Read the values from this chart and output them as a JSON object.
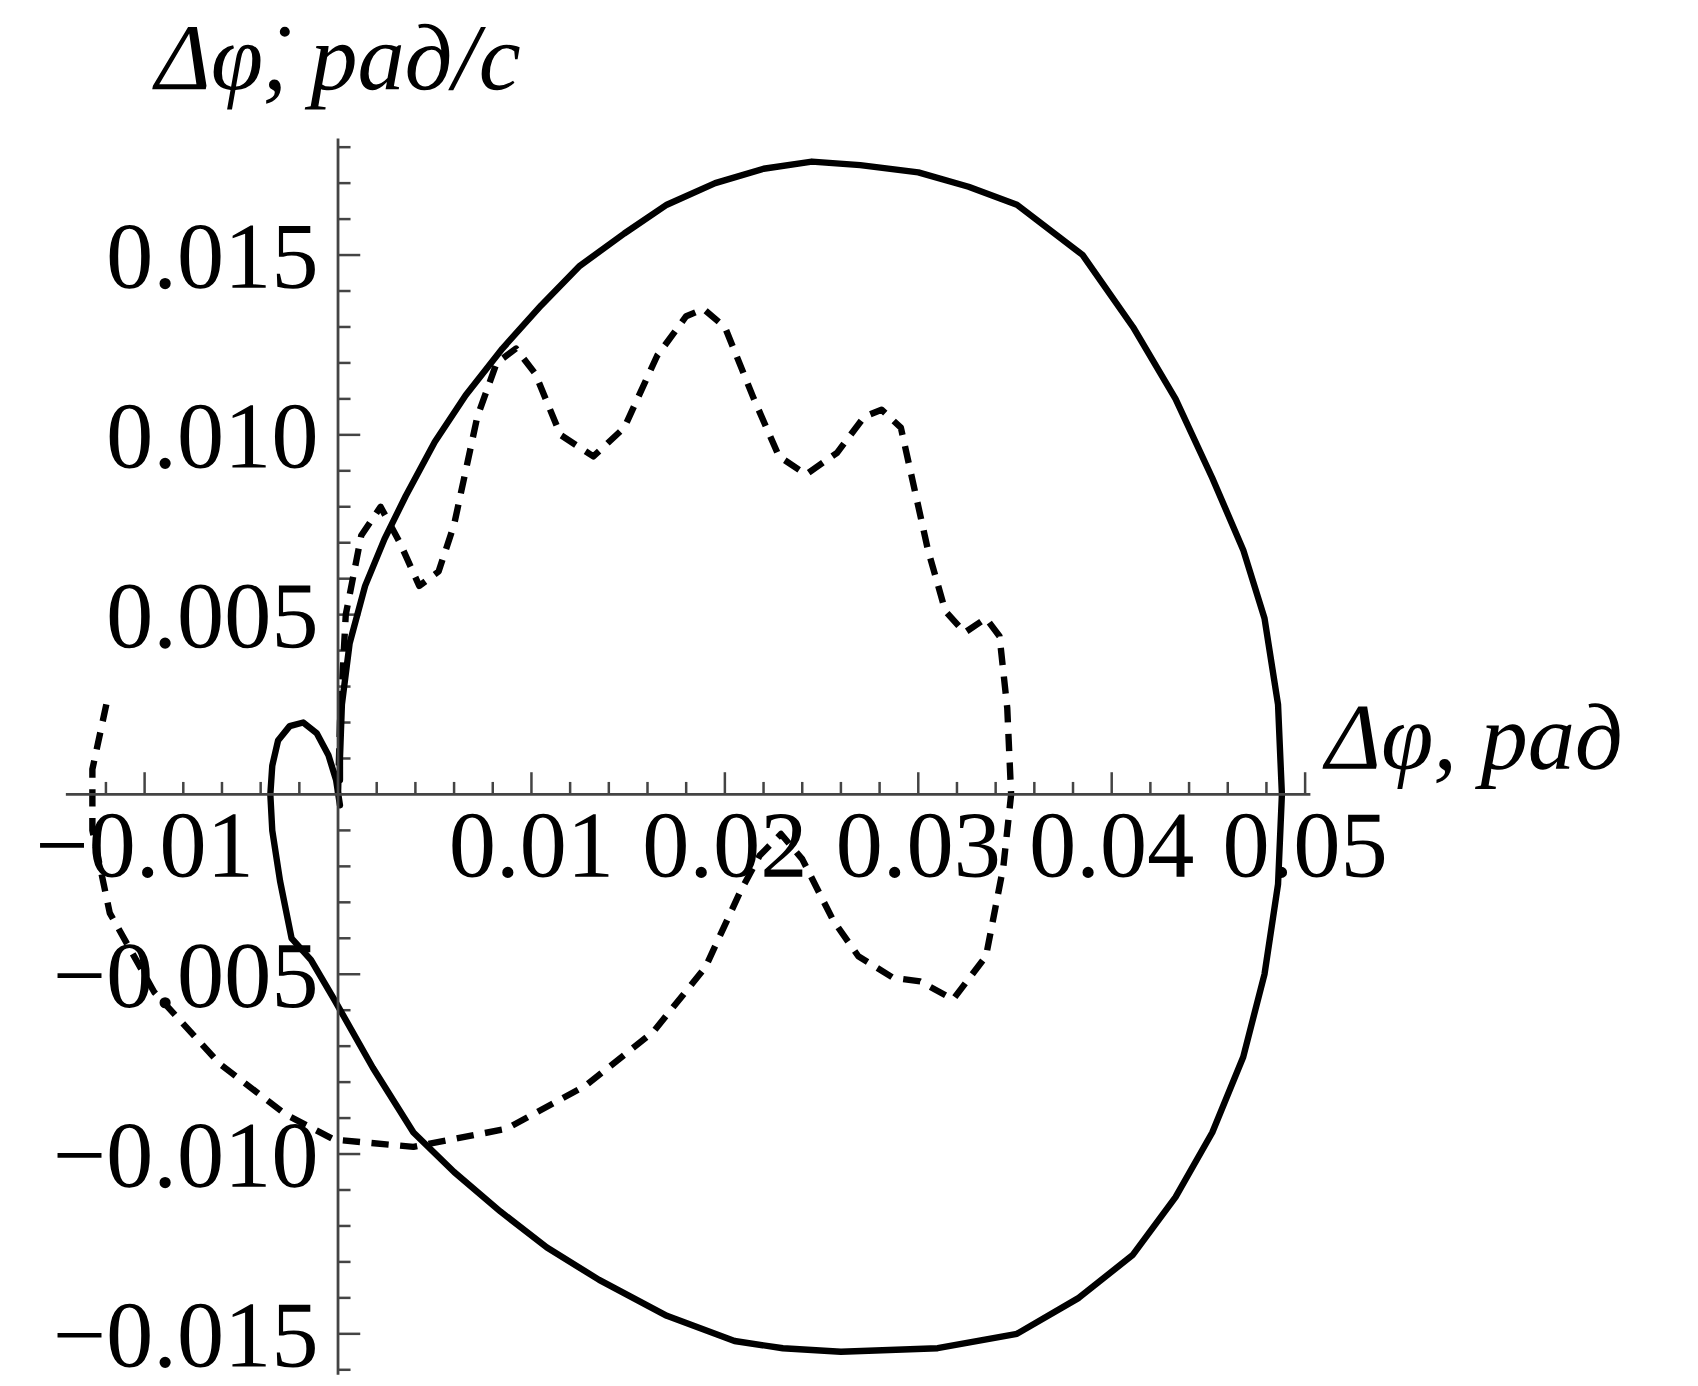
{
  "chart_data": {
    "type": "line",
    "xlabel": "Δφ, рад",
    "ylabel": "Δφ̇, рад/с",
    "xlim": [
      -0.014,
      0.0502
    ],
    "ylim": [
      -0.0161,
      0.0182
    ],
    "xticks": [
      {
        "value": -0.012,
        "label": null
      },
      {
        "value": -0.01,
        "label": "−0.01"
      },
      {
        "value": -0.008,
        "label": null
      },
      {
        "value": -0.006,
        "label": null
      },
      {
        "value": -0.004,
        "label": null
      },
      {
        "value": -0.002,
        "label": null
      },
      {
        "value": 0.002,
        "label": null
      },
      {
        "value": 0.004,
        "label": null
      },
      {
        "value": 0.006,
        "label": null
      },
      {
        "value": 0.008,
        "label": null
      },
      0.01,
      {
        "value": 0.012,
        "label": null
      },
      {
        "value": 0.014,
        "label": null
      },
      {
        "value": 0.016,
        "label": null
      },
      {
        "value": 0.018,
        "label": null
      },
      0.02,
      {
        "value": 0.022,
        "label": null
      },
      {
        "value": 0.024,
        "label": null
      },
      {
        "value": 0.026,
        "label": null
      },
      {
        "value": 0.028,
        "label": null
      },
      0.03,
      {
        "value": 0.032,
        "label": null
      },
      {
        "value": 0.034,
        "label": null
      },
      {
        "value": 0.036,
        "label": null
      },
      {
        "value": 0.038,
        "label": null
      },
      0.04,
      {
        "value": 0.042,
        "label": null
      },
      {
        "value": 0.044,
        "label": null
      },
      {
        "value": 0.046,
        "label": null
      },
      {
        "value": 0.048,
        "label": null
      },
      0.05
    ],
    "yticks": [
      {
        "value": -0.016,
        "label": null
      },
      {
        "value": -0.015,
        "label": "−0.015"
      },
      {
        "value": -0.014,
        "label": null
      },
      {
        "value": -0.013,
        "label": null
      },
      {
        "value": -0.012,
        "label": null
      },
      {
        "value": -0.011,
        "label": null
      },
      {
        "value": -0.01,
        "label": "−0.010"
      },
      {
        "value": -0.009,
        "label": null
      },
      {
        "value": -0.008,
        "label": null
      },
      {
        "value": -0.007,
        "label": null
      },
      {
        "value": -0.006,
        "label": null
      },
      {
        "value": -0.005,
        "label": "−0.005"
      },
      {
        "value": -0.004,
        "label": null
      },
      {
        "value": -0.003,
        "label": null
      },
      {
        "value": -0.002,
        "label": null
      },
      {
        "value": -0.001,
        "label": null
      },
      {
        "value": 0.001,
        "label": null
      },
      {
        "value": 0.002,
        "label": null
      },
      {
        "value": 0.003,
        "label": null
      },
      {
        "value": 0.004,
        "label": null
      },
      0.005,
      {
        "value": 0.006,
        "label": null
      },
      {
        "value": 0.007,
        "label": null
      },
      {
        "value": 0.008,
        "label": null
      },
      {
        "value": 0.009,
        "label": null
      },
      {
        "value": 0.01,
        "label": "0.010"
      },
      {
        "value": 0.011,
        "label": null
      },
      {
        "value": 0.012,
        "label": null
      },
      {
        "value": 0.013,
        "label": null
      },
      {
        "value": 0.014,
        "label": null
      },
      0.015,
      {
        "value": 0.016,
        "label": null
      },
      {
        "value": 0.017,
        "label": null
      },
      {
        "value": 0.018,
        "label": null
      }
    ],
    "series": [
      {
        "color": "#000000",
        "line_style": "solid",
        "x": [
          0.0001,
          0.0001,
          0.0002,
          0.0006,
          0.0014,
          0.0024,
          0.0035,
          0.005,
          0.0066,
          0.0085,
          0.0105,
          0.0125,
          0.0148,
          0.017,
          0.0195,
          0.022,
          0.0245,
          0.027,
          0.03,
          0.0326,
          0.0351,
          0.0385,
          0.0411,
          0.0433,
          0.0452,
          0.0468,
          0.0479,
          0.0486,
          0.0488,
          0.0486,
          0.0479,
          0.0468,
          0.0452,
          0.0433,
          0.0411,
          0.0383,
          0.0351,
          0.031,
          0.026,
          0.023,
          0.0205,
          0.017,
          0.0135,
          0.0108,
          0.0084,
          0.006,
          0.0039,
          0.0018,
          -0.0002,
          -0.0014,
          -0.0024,
          -0.003,
          -0.0034,
          -0.0035,
          -0.0034,
          -0.0031,
          -0.0025,
          -0.0018,
          -0.0011,
          -0.0005,
          -0.0001,
          0.0001
        ],
        "values": [
          0.0004,
          0.001,
          0.0025,
          0.0042,
          0.0058,
          0.0071,
          0.0083,
          0.0098,
          0.0111,
          0.0124,
          0.0136,
          0.0147,
          0.0156,
          0.0164,
          0.017,
          0.0174,
          0.0176,
          0.0175,
          0.0173,
          0.0169,
          0.0164,
          0.015,
          0.013,
          0.011,
          0.0088,
          0.0068,
          0.0049,
          0.0025,
          0.0,
          -0.0025,
          -0.005,
          -0.0073,
          -0.0094,
          -0.0112,
          -0.0128,
          -0.014,
          -0.015,
          -0.0154,
          -0.0155,
          -0.0154,
          -0.0152,
          -0.0145,
          -0.0135,
          -0.0126,
          -0.0116,
          -0.0105,
          -0.0094,
          -0.0076,
          -0.0057,
          -0.0046,
          -0.004,
          -0.0024,
          -0.001,
          0.0,
          0.0008,
          0.0015,
          0.0019,
          0.002,
          0.0017,
          0.0011,
          0.0004,
          -0.0003
        ]
      },
      {
        "color": "#000000",
        "line_style": "dashed",
        "x": [
          0.0,
          0.0001,
          0.0004,
          0.0012,
          0.0022,
          0.0032,
          0.0042,
          0.0052,
          0.006,
          0.0072,
          0.0082,
          0.0092,
          0.0102,
          0.0115,
          0.0132,
          0.0148,
          0.0165,
          0.018,
          0.0189,
          0.02,
          0.0215,
          0.0228,
          0.0242,
          0.0258,
          0.0272,
          0.0281,
          0.0291,
          0.0305,
          0.0314,
          0.0324,
          0.0335,
          0.0342,
          0.0346,
          0.0348,
          0.0344,
          0.0335,
          0.0318,
          0.0301,
          0.0287,
          0.0269,
          0.0256,
          0.024,
          0.0229,
          0.0218,
          0.0208,
          0.019,
          0.0163,
          0.0128,
          0.0087,
          0.0039,
          -0.0002,
          -0.0027,
          -0.0061,
          -0.0095,
          -0.0118,
          -0.0127,
          -0.0127,
          -0.0119
        ],
        "values": [
          0.0,
          0.002,
          0.005,
          0.0072,
          0.008,
          0.007,
          0.0058,
          0.0062,
          0.0075,
          0.0105,
          0.012,
          0.0124,
          0.0117,
          0.01,
          0.0094,
          0.0102,
          0.0122,
          0.0133,
          0.0135,
          0.013,
          0.011,
          0.0094,
          0.0089,
          0.0095,
          0.0105,
          0.0107,
          0.0102,
          0.0068,
          0.0051,
          0.0045,
          0.0049,
          0.0044,
          0.0024,
          0.0,
          -0.002,
          -0.0045,
          -0.0057,
          -0.0052,
          -0.0051,
          -0.0045,
          -0.0035,
          -0.0018,
          -0.0011,
          -0.0017,
          -0.0027,
          -0.0048,
          -0.0066,
          -0.0081,
          -0.0093,
          -0.0098,
          -0.0096,
          -0.0089,
          -0.0075,
          -0.0055,
          -0.0033,
          -0.001,
          0.0007,
          0.0027
        ]
      }
    ]
  }
}
